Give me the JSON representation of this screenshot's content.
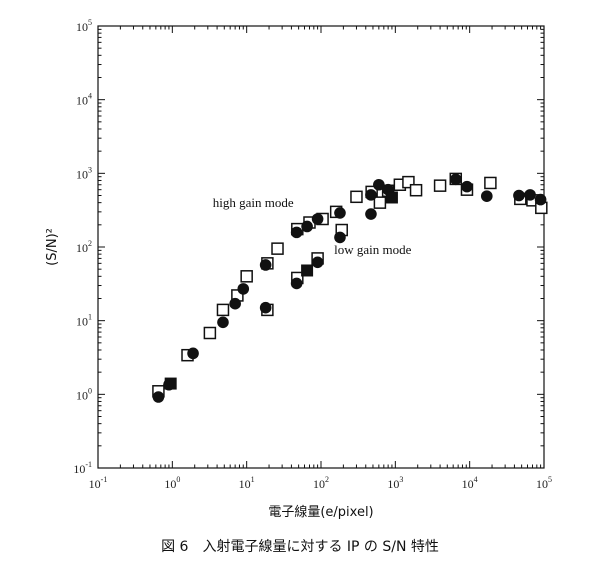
{
  "chart_data": {
    "type": "scatter",
    "x_scale": "log",
    "y_scale": "log",
    "xlim": [
      0.1,
      100000
    ],
    "ylim": [
      0.1,
      100000
    ],
    "x_ticks": [
      0.1,
      1,
      10,
      100,
      1000,
      10000,
      100000
    ],
    "y_ticks": [
      0.1,
      1,
      10,
      100,
      1000,
      10000,
      100000
    ],
    "x_tick_labels": [
      {
        "base": "10",
        "exp": "-1"
      },
      {
        "base": "10",
        "exp": "0"
      },
      {
        "base": "10",
        "exp": "1"
      },
      {
        "base": "10",
        "exp": "2"
      },
      {
        "base": "10",
        "exp": "3"
      },
      {
        "base": "10",
        "exp": "4"
      },
      {
        "base": "10",
        "exp": "5"
      }
    ],
    "y_tick_labels": [
      {
        "base": "10",
        "exp": "-1"
      },
      {
        "base": "10",
        "exp": "0"
      },
      {
        "base": "10",
        "exp": "1"
      },
      {
        "base": "10",
        "exp": "2"
      },
      {
        "base": "10",
        "exp": "3"
      },
      {
        "base": "10",
        "exp": "4"
      },
      {
        "base": "10",
        "exp": "5"
      }
    ],
    "xlabel": "電子線量(e/pixel)",
    "ylabel": "(S/N)²",
    "grid": false,
    "annotations": [
      {
        "text": "high gain mode",
        "x": 3.5,
        "y": 350
      },
      {
        "text": "low gain mode",
        "x": 150,
        "y": 80
      }
    ],
    "series": [
      {
        "marker": "open-square",
        "points": [
          [
            0.65,
            1.1
          ],
          [
            1.6,
            3.4
          ],
          [
            3.2,
            6.8
          ],
          [
            4.8,
            14
          ],
          [
            7.5,
            22
          ],
          [
            10,
            40
          ],
          [
            19,
            60
          ],
          [
            26,
            95
          ],
          [
            48,
            175
          ],
          [
            70,
            215
          ],
          [
            105,
            240
          ],
          [
            160,
            300
          ],
          [
            19,
            14
          ],
          [
            48,
            38
          ],
          [
            90,
            70
          ],
          [
            190,
            170
          ],
          [
            300,
            480
          ],
          [
            480,
            560
          ],
          [
            620,
            400
          ],
          [
            800,
            580
          ],
          [
            1150,
            700
          ],
          [
            1500,
            760
          ],
          [
            1900,
            590
          ],
          [
            4000,
            680
          ],
          [
            6500,
            840
          ],
          [
            9200,
            600
          ],
          [
            19000,
            740
          ],
          [
            48000,
            450
          ],
          [
            70000,
            430
          ],
          [
            92000,
            340
          ]
        ]
      },
      {
        "marker": "filled-circle",
        "points": [
          [
            0.65,
            0.92
          ],
          [
            0.9,
            1.35
          ],
          [
            1.9,
            3.6
          ],
          [
            4.8,
            9.5
          ],
          [
            7,
            17
          ],
          [
            9,
            27
          ],
          [
            18,
            57
          ],
          [
            18,
            15
          ],
          [
            47,
            32
          ],
          [
            47,
            158
          ],
          [
            65,
            190
          ],
          [
            90,
            240
          ],
          [
            180,
            290
          ],
          [
            90,
            62
          ],
          [
            180,
            135
          ],
          [
            470,
            280
          ],
          [
            470,
            510
          ],
          [
            600,
            700
          ],
          [
            800,
            600
          ],
          [
            6500,
            830
          ],
          [
            9200,
            660
          ],
          [
            17000,
            490
          ],
          [
            46000,
            500
          ],
          [
            65000,
            510
          ],
          [
            90000,
            440
          ]
        ]
      },
      {
        "marker": "filled-square",
        "points": [
          [
            0.95,
            1.4
          ],
          [
            65,
            48
          ],
          [
            900,
            470
          ]
        ]
      }
    ]
  },
  "caption": "図 6　入射電子線量に対する IP の S/N 特性"
}
